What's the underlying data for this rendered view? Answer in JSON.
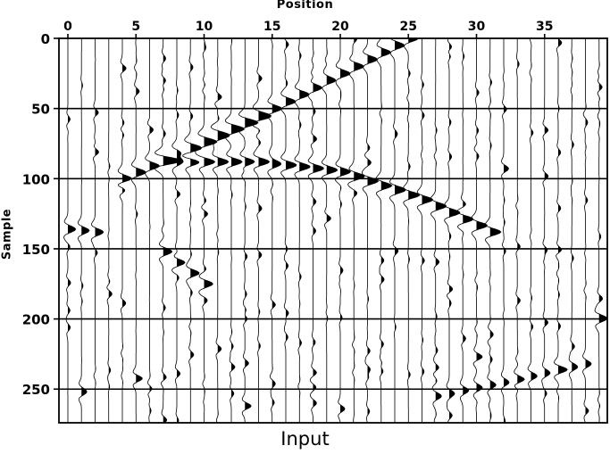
{
  "chart_data": {
    "type": "wiggle",
    "title": "Input",
    "xlabel": "Position",
    "ylabel": "Sample",
    "xlim": [
      -0.6,
      39.6
    ],
    "ylim": [
      0,
      274
    ],
    "x_ticks": [
      0,
      5,
      10,
      15,
      20,
      25,
      30,
      35
    ],
    "y_ticks": [
      0,
      50,
      100,
      150,
      200,
      250
    ],
    "grid": "horizontal at y ticks",
    "n_traces": 40,
    "events": [
      {
        "name": "dipping-left",
        "points": [
          [
            25,
            0
          ],
          [
            15,
            50
          ],
          [
            4,
            100
          ]
        ],
        "amp": 1.0
      },
      {
        "name": "dipping-right",
        "points": [
          [
            7,
            88
          ],
          [
            14,
            88
          ],
          [
            20,
            95
          ],
          [
            26,
            115
          ],
          [
            31,
            138
          ]
        ],
        "amp": 1.1
      },
      {
        "name": "upper-v",
        "points": [
          [
            9,
            80
          ],
          [
            14,
            57
          ]
        ],
        "amp": 0.7
      },
      {
        "name": "short-event",
        "points": [
          [
            7,
            152
          ],
          [
            10,
            175
          ]
        ],
        "amp": 0.9
      },
      {
        "name": "lower-event",
        "points": [
          [
            27,
            255
          ],
          [
            32,
            245
          ],
          [
            38,
            232
          ]
        ],
        "amp": 0.6
      },
      {
        "name": "left-spike",
        "points": [
          [
            0,
            136
          ],
          [
            2,
            138
          ]
        ],
        "amp": 0.8
      },
      {
        "name": "right-spike",
        "points": [
          [
            39,
            200
          ],
          [
            39,
            200
          ]
        ],
        "amp": 0.7
      }
    ]
  }
}
